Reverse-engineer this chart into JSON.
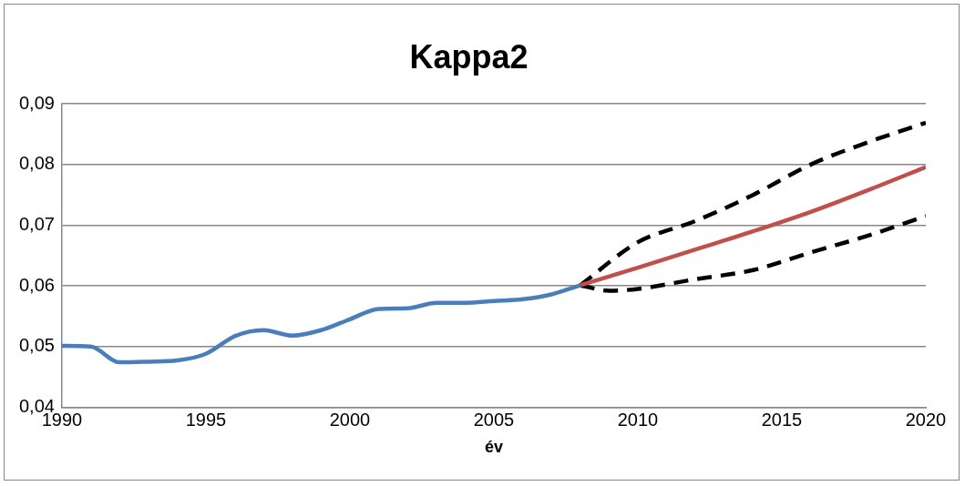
{
  "chart_data": {
    "type": "line",
    "title": "Kappa2",
    "xlabel": "év",
    "xlim": [
      1990,
      2020
    ],
    "xticks": [
      1990,
      1995,
      2000,
      2005,
      2010,
      2015,
      2020
    ],
    "ylim": [
      0.04,
      0.09
    ],
    "yticks": [
      {
        "value": 0.04,
        "label": "0,04"
      },
      {
        "value": 0.05,
        "label": "0,05"
      },
      {
        "value": 0.06,
        "label": "0,06"
      },
      {
        "value": 0.07,
        "label": "0,07"
      },
      {
        "value": 0.08,
        "label": "0,08"
      },
      {
        "value": 0.09,
        "label": "0,09"
      }
    ],
    "grid": "y",
    "legend": false,
    "marker": "none",
    "series": [
      {
        "color": "#4a7ebb",
        "line_style": "solid",
        "x": [
          1990,
          1991,
          1992,
          1993,
          1994,
          1995,
          1996,
          1997,
          1998,
          1999,
          2000,
          2001,
          2002,
          2003,
          2004,
          2005,
          2006,
          2007,
          2008
        ],
        "values": [
          0.0501,
          0.05,
          0.0474,
          0.0475,
          0.0477,
          0.0488,
          0.0517,
          0.0527,
          0.0518,
          0.0527,
          0.0545,
          0.0562,
          0.0563,
          0.0572,
          0.0572,
          0.0575,
          0.0578,
          0.0586,
          0.0601
        ]
      },
      {
        "color": "#c0504d",
        "line_style": "solid",
        "x": [
          2008,
          2010,
          2012,
          2014,
          2016,
          2018,
          2020
        ],
        "values": [
          0.0601,
          0.063,
          0.066,
          0.069,
          0.0722,
          0.0758,
          0.0796
        ]
      },
      {
        "color": "#000000",
        "line_style": "dashed",
        "x": [
          2008,
          2010,
          2012,
          2014,
          2016,
          2018,
          2020
        ],
        "values": [
          0.0601,
          0.0672,
          0.0707,
          0.075,
          0.08,
          0.0837,
          0.0869
        ]
      },
      {
        "color": "#000000",
        "line_style": "dashed",
        "x": [
          2008,
          2009,
          2010,
          2012,
          2014,
          2016,
          2018,
          2020
        ],
        "values": [
          0.0601,
          0.0592,
          0.0595,
          0.0611,
          0.0626,
          0.0655,
          0.0683,
          0.0715
        ]
      }
    ]
  }
}
